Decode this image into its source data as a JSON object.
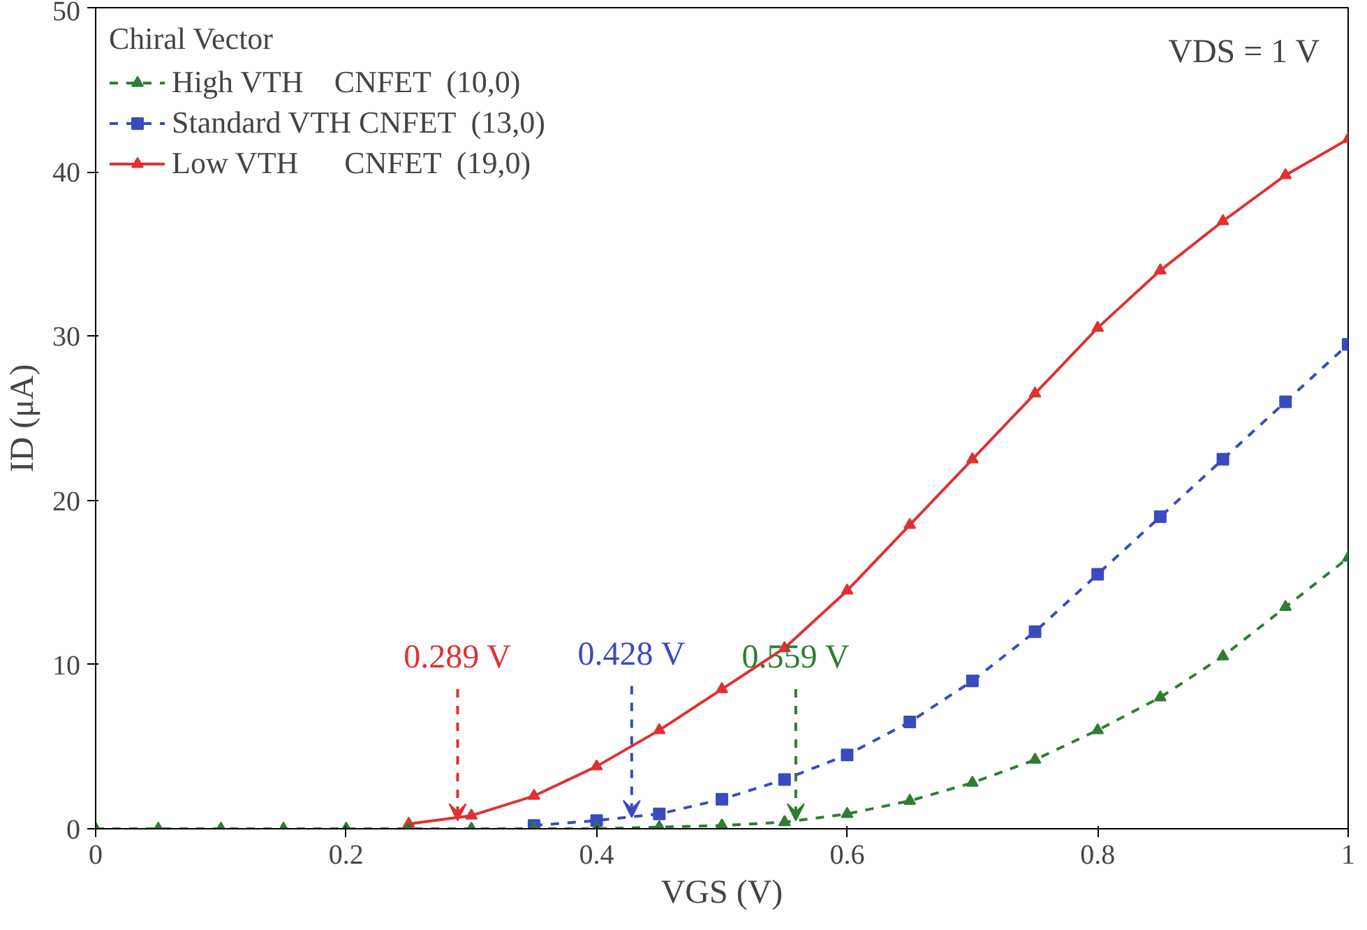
{
  "chart_data": {
    "type": "line",
    "xlabel": "VGS (V)",
    "ylabel": "ID (μA)",
    "legend_title": "Chiral Vector",
    "xlim": [
      0,
      1
    ],
    "ylim": [
      0,
      50
    ],
    "xticks": [
      0,
      0.2,
      0.4,
      0.6,
      0.8,
      1
    ],
    "yticks": [
      0,
      10,
      20,
      30,
      40,
      50
    ],
    "grid": false,
    "legend": "top left",
    "x": [
      0,
      0.05,
      0.1,
      0.15,
      0.2,
      0.25,
      0.3,
      0.35,
      0.4,
      0.45,
      0.5,
      0.55,
      0.6,
      0.65,
      0.7,
      0.75,
      0.8,
      0.85,
      0.9,
      0.95,
      1
    ],
    "series": [
      {
        "name": "High VTH    CNFET  (10,0)",
        "color": "#2e7d32",
        "marker": "triangle",
        "line_style": "dashed",
        "values": [
          0,
          0,
          0,
          0,
          0,
          0,
          0,
          0,
          0,
          0.1,
          0.2,
          0.4,
          0.9,
          1.7,
          2.8,
          4.2,
          6,
          8,
          10.5,
          13.5,
          16.5
        ]
      },
      {
        "name": "Standard VTH CNFET  (13,0)",
        "color": "#3a4bbf",
        "marker": "square",
        "line_style": "dashed",
        "values": [
          null,
          null,
          null,
          null,
          null,
          null,
          null,
          0.2,
          0.5,
          0.9,
          1.8,
          3,
          4.5,
          6.5,
          9,
          12,
          15.5,
          19,
          22.5,
          26,
          29.5
        ]
      },
      {
        "name": "Low VTH      CNFET  (19,0)",
        "color": "#e03030",
        "marker": "triangle",
        "line_style": "solid",
        "values": [
          null,
          null,
          null,
          null,
          null,
          0.3,
          0.8,
          2,
          3.8,
          6,
          8.5,
          11,
          14.5,
          18.5,
          22.5,
          26.5,
          30.5,
          34,
          37,
          39.8,
          42
        ]
      }
    ],
    "annotations": [
      {
        "text": "0.559 V",
        "x": 0.559,
        "y": 0.5
      },
      {
        "text": "0.428 V",
        "x": 0.428,
        "y": 0.7
      },
      {
        "text": "0.289 V",
        "x": 0.289,
        "y": 0.5
      },
      "VDS = 1 V"
    ]
  }
}
